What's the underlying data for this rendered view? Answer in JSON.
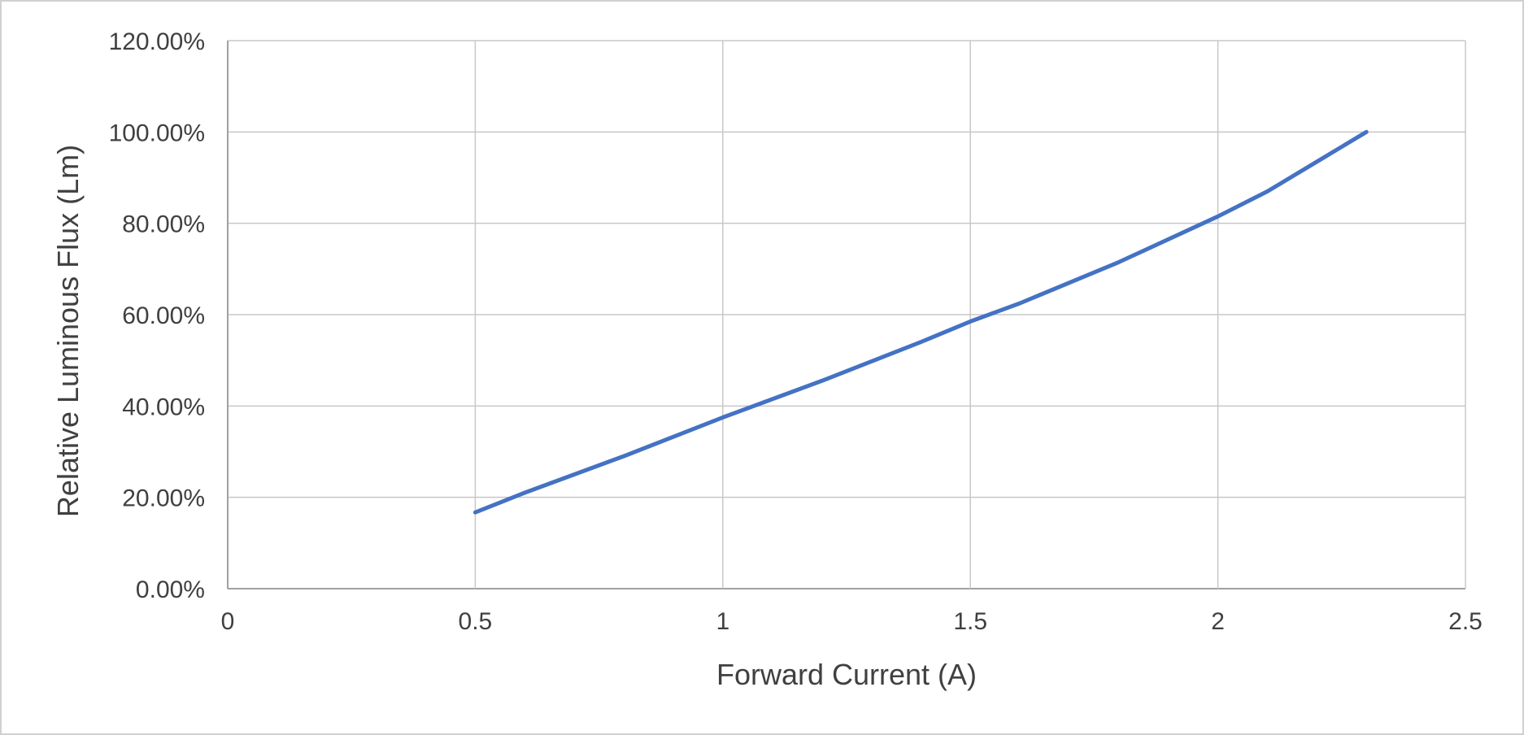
{
  "chart_data": {
    "type": "line",
    "title": "",
    "xlabel": "Forward Current (A)",
    "ylabel": "Relative Luminous Flux (Lm)",
    "xlim": [
      0,
      2.5
    ],
    "ylim": [
      0,
      1.2
    ],
    "x_ticks": [
      0,
      0.5,
      1,
      1.5,
      2,
      2.5
    ],
    "x_tick_labels": [
      "0",
      "0.5",
      "1",
      "1.5",
      "2",
      "2.5"
    ],
    "y_ticks": [
      0,
      0.2,
      0.4,
      0.6,
      0.8,
      1.0,
      1.2
    ],
    "y_tick_labels": [
      "0.00%",
      "20.00%",
      "40.00%",
      "60.00%",
      "80.00%",
      "100.00%",
      "120.00%"
    ],
    "grid": true,
    "legend": "none",
    "series": [
      {
        "color": "#4472c4",
        "x": [
          0.5,
          0.6,
          0.8,
          1.0,
          1.2,
          1.4,
          1.5,
          1.6,
          1.8,
          2.0,
          2.1,
          2.2,
          2.3
        ],
        "y": [
          0.167,
          0.21,
          0.29,
          0.375,
          0.455,
          0.54,
          0.585,
          0.625,
          0.715,
          0.815,
          0.87,
          0.935,
          1.0
        ]
      }
    ],
    "gridline_color": "#c8c8c8",
    "axis_color": "#a0a0a0"
  }
}
